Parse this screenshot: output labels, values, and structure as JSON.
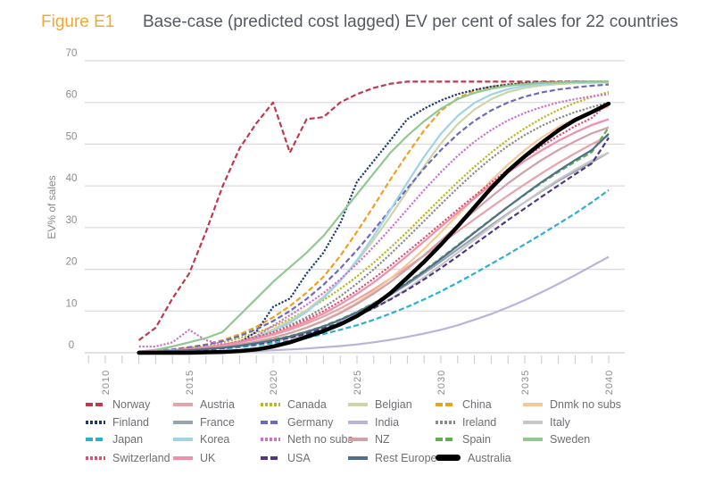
{
  "figure_label": "Figure E1",
  "chart_data": {
    "type": "line",
    "title": "Base-case (predicted cost lagged) EV per cent of sales for 22 countries",
    "xlabel": "",
    "ylabel": "EV% of sales",
    "xlim": [
      2008,
      2041
    ],
    "ylim": [
      0,
      70
    ],
    "x_ticks": [
      2010,
      2015,
      2020,
      2025,
      2030,
      2035,
      2040
    ],
    "y_ticks": [
      0,
      10,
      20,
      30,
      40,
      50,
      60,
      70
    ],
    "grid": "horizontal",
    "legend_position": "bottom",
    "x": [
      2012,
      2013,
      2014,
      2015,
      2016,
      2017,
      2018,
      2019,
      2020,
      2021,
      2022,
      2023,
      2024,
      2025,
      2026,
      2027,
      2028,
      2029,
      2030,
      2031,
      2032,
      2033,
      2034,
      2035,
      2036,
      2037,
      2038,
      2039,
      2040
    ],
    "series": [
      {
        "name": "Norway",
        "color": "#c0394b",
        "style": "dash",
        "values": [
          3,
          6,
          13,
          19,
          29,
          40,
          49,
          55,
          60,
          48,
          56,
          56.5,
          60,
          62,
          63.5,
          64.5,
          65,
          65,
          65,
          65,
          65,
          65,
          65,
          65,
          65,
          65,
          65,
          65,
          65
        ]
      },
      {
        "name": "Austria",
        "color": "#e8a3aa",
        "style": "solid",
        "values": [
          0.3,
          0.4,
          0.6,
          0.9,
          1.3,
          1.8,
          2.5,
          3.3,
          4.3,
          5.5,
          7,
          8.7,
          10.6,
          12.8,
          15.2,
          17.8,
          20.5,
          23.3,
          26.2,
          29.1,
          32,
          34.9,
          37.7,
          40.4,
          43,
          45.5,
          47.8,
          50,
          52
        ]
      },
      {
        "name": "Canada",
        "color": "#b8b820",
        "style": "dot",
        "values": [
          0.3,
          0.5,
          0.8,
          1.2,
          1.7,
          2.5,
          3.5,
          4.8,
          6.3,
          8.1,
          10.2,
          12.6,
          15.3,
          18.3,
          21.6,
          25.2,
          29,
          33,
          37,
          40.9,
          44.6,
          48,
          51.1,
          53.8,
          56.2,
          58.2,
          59.9,
          61.3,
          62.5
        ]
      },
      {
        "name": "Belgian",
        "color": "#cbd5a8",
        "style": "solid",
        "values": [
          0.2,
          0.4,
          0.6,
          0.9,
          1.3,
          1.9,
          2.8,
          4,
          5.6,
          7.6,
          10.2,
          13.4,
          17.3,
          21.9,
          27.1,
          32.8,
          38.8,
          44.7,
          50.2,
          54.8,
          58.3,
          60.8,
          62.5,
          63.5,
          64.1,
          64.4,
          64.6,
          64.7,
          64.8
        ]
      },
      {
        "name": "China",
        "color": "#f0a020",
        "style": "dash",
        "values": [
          0.3,
          0.5,
          0.8,
          1.3,
          2,
          3,
          4.4,
          6.2,
          8.5,
          11.2,
          14.4,
          18.2,
          23.2,
          29,
          35.2,
          41.6,
          47.6,
          53.3,
          58,
          61,
          62.9,
          63.8,
          64.3,
          64.6,
          64.8,
          64.9,
          64.9,
          65,
          65
        ]
      },
      {
        "name": "Dnmk no subs",
        "color": "#f5c89a",
        "style": "solid",
        "values": [
          0.2,
          0.3,
          0.5,
          0.7,
          1,
          1.4,
          2,
          2.7,
          3.6,
          4.7,
          6.1,
          7.7,
          9.7,
          12,
          14.7,
          17.8,
          21.2,
          24.9,
          28.9,
          33,
          37.2,
          41.3,
          45.1,
          48.6,
          51.6,
          54.1,
          56.1,
          57.7,
          59
        ]
      },
      {
        "name": "Finland",
        "color": "#1e3a6e",
        "style": "dot",
        "values": [
          0.2,
          0.3,
          0.5,
          0.8,
          1.2,
          1.8,
          2.5,
          5,
          11,
          13,
          19,
          24,
          31,
          41,
          46,
          51,
          56,
          58.5,
          60.5,
          62,
          63,
          63.8,
          64.3,
          64.6,
          64.8,
          64.9,
          65,
          65,
          65
        ]
      },
      {
        "name": "France",
        "color": "#98a2b3",
        "style": "solid",
        "values": [
          0.2,
          0.3,
          0.4,
          0.6,
          0.9,
          1.2,
          1.7,
          2.3,
          3,
          3.9,
          5,
          6.3,
          7.8,
          9.6,
          11.6,
          13.9,
          16.4,
          19.1,
          21.9,
          24.8,
          27.7,
          30.6,
          33.4,
          36.1,
          38.7,
          41.2,
          43.5,
          45.7,
          48
        ]
      },
      {
        "name": "Germany",
        "color": "#6a6ac0",
        "style": "dash",
        "values": [
          0.3,
          0.5,
          0.8,
          1.3,
          1.9,
          2.8,
          4,
          5.6,
          7.6,
          10,
          12.9,
          16.3,
          20.2,
          24.6,
          29.4,
          34.4,
          39.4,
          44.2,
          48.6,
          52.4,
          55.6,
          58.1,
          60,
          61.4,
          62.4,
          63.1,
          63.6,
          64,
          64.3
        ]
      },
      {
        "name": "India",
        "color": "#b8b4dc",
        "style": "solid",
        "values": [
          0,
          0,
          0,
          0.1,
          0.1,
          0.2,
          0.3,
          0.4,
          0.6,
          0.8,
          1,
          1.3,
          1.6,
          2,
          2.5,
          3.1,
          3.8,
          4.6,
          5.5,
          6.6,
          7.9,
          9.3,
          10.9,
          12.6,
          14.5,
          16.5,
          18.6,
          20.8,
          23
        ]
      },
      {
        "name": "Ireland",
        "color": "#8a8a8a",
        "style": "dot",
        "values": [
          0.2,
          0.4,
          0.6,
          0.9,
          1.3,
          1.9,
          2.7,
          3.7,
          5,
          6.6,
          8.5,
          10.8,
          13.5,
          16.6,
          20,
          23.7,
          27.6,
          31.6,
          35.6,
          39.5,
          43.2,
          46.6,
          49.6,
          52.2,
          54.4,
          56.2,
          57.7,
          58.9,
          60
        ]
      },
      {
        "name": "Italy",
        "color": "#c8c8cc",
        "style": "solid",
        "values": [
          0.2,
          0.3,
          0.4,
          0.6,
          0.8,
          1.1,
          1.5,
          2,
          2.7,
          3.5,
          4.5,
          5.7,
          7.1,
          8.8,
          10.7,
          12.9,
          15.4,
          18.1,
          21,
          24,
          27.1,
          30.2,
          33.2,
          36.1,
          38.9,
          41.5,
          43.9,
          46.1,
          48
        ]
      },
      {
        "name": "Japan",
        "color": "#2ab0d0",
        "style": "dash",
        "values": [
          0.1,
          0.2,
          0.3,
          0.5,
          0.7,
          1,
          1.3,
          1.8,
          2.3,
          2.9,
          3.6,
          4.5,
          5.5,
          6.6,
          7.9,
          9.4,
          11,
          12.8,
          14.7,
          16.8,
          19,
          21.3,
          23.6,
          26,
          28.4,
          30.9,
          33.4,
          36.1,
          39
        ]
      },
      {
        "name": "Korea",
        "color": "#9fd4e8",
        "style": "solid",
        "values": [
          0.2,
          0.3,
          0.5,
          0.8,
          1.2,
          1.8,
          2.6,
          3.7,
          5.2,
          7.2,
          9.8,
          13.1,
          17.2,
          22.2,
          28,
          34.3,
          40.8,
          47,
          52.5,
          56.8,
          59.9,
          61.9,
          63.2,
          64,
          64.4,
          64.7,
          64.8,
          64.9,
          65
        ]
      },
      {
        "name": "Neth no subs",
        "color": "#d070d0",
        "style": "dot",
        "values": [
          1.5,
          1.5,
          2.5,
          5.5,
          3,
          2,
          2.5,
          4,
          6.5,
          9,
          11.5,
          14.3,
          17.6,
          21.3,
          25.4,
          29.8,
          34.4,
          39,
          43.3,
          47.2,
          50.6,
          53.4,
          55.7,
          57.5,
          58.9,
          60,
          60.8,
          61.5,
          62
        ]
      },
      {
        "name": "NZ",
        "color": "#d4a0a8",
        "style": "solid",
        "values": [
          0.2,
          0.3,
          0.5,
          0.7,
          1,
          1.4,
          2,
          2.7,
          3.6,
          4.7,
          6,
          7.6,
          9.5,
          11.7,
          14.2,
          17,
          20.1,
          23.4,
          26.9,
          30.5,
          34,
          37.4,
          40.6,
          43.5,
          46.2,
          48.6,
          50.7,
          52.6,
          54
        ]
      },
      {
        "name": "Spain",
        "color": "#60b050",
        "style": "dash",
        "values": [
          0.2,
          0.3,
          0.4,
          0.6,
          0.9,
          1.2,
          1.7,
          2.3,
          3.1,
          4,
          5.1,
          6.4,
          8,
          9.8,
          11.9,
          14.3,
          16.9,
          19.7,
          22.7,
          25.8,
          28.9,
          32,
          35,
          37.9,
          40.7,
          43.3,
          45.8,
          48.1,
          54
        ]
      },
      {
        "name": "Sweden",
        "color": "#90c890",
        "style": "solid",
        "values": [
          0.3,
          0.7,
          1.5,
          2.5,
          3.5,
          5,
          9,
          13,
          17,
          20.5,
          24,
          28,
          33,
          38,
          43,
          48,
          52,
          55.5,
          58.5,
          60.8,
          62.3,
          63.3,
          64,
          64.4,
          64.7,
          64.8,
          64.9,
          65,
          65
        ]
      },
      {
        "name": "Switzerland",
        "color": "#e05070",
        "style": "dot",
        "values": [
          0.3,
          0.4,
          0.6,
          0.9,
          1.3,
          1.9,
          2.7,
          3.7,
          4.9,
          6.3,
          8,
          10,
          12.3,
          14.9,
          17.8,
          20.9,
          24.2,
          27.5,
          30.9,
          34.3,
          37.6,
          40.8,
          43.9,
          46.8,
          49.5,
          52,
          54.3,
          56.3,
          60
        ]
      },
      {
        "name": "UK",
        "color": "#f090a8",
        "style": "solid",
        "values": [
          0.2,
          0.4,
          0.6,
          0.9,
          1.3,
          1.8,
          2.5,
          3.4,
          4.5,
          5.9,
          7.5,
          9.4,
          11.6,
          14.1,
          16.9,
          20,
          23.3,
          26.7,
          30.2,
          33.6,
          37,
          40.2,
          43.2,
          46,
          48.5,
          50.8,
          52.8,
          54.6,
          56
        ]
      },
      {
        "name": "USA",
        "color": "#503880",
        "style": "dash",
        "values": [
          0.2,
          0.3,
          0.4,
          0.6,
          0.8,
          1.1,
          1.6,
          2.1,
          2.8,
          3.6,
          4.6,
          5.8,
          7.2,
          8.8,
          10.7,
          12.8,
          15.1,
          17.6,
          20.3,
          23.1,
          26,
          28.9,
          31.8,
          34.6,
          37.4,
          40.1,
          42.8,
          45.4,
          51.5
        ]
      },
      {
        "name": "Rest Europe",
        "color": "#507088",
        "style": "solid",
        "values": [
          0.2,
          0.3,
          0.4,
          0.6,
          0.9,
          1.2,
          1.7,
          2.3,
          3,
          3.9,
          5,
          6.3,
          7.9,
          9.7,
          11.8,
          14.1,
          16.7,
          19.5,
          22.5,
          25.6,
          28.8,
          31.9,
          35,
          38,
          40.9,
          43.6,
          46.2,
          48.6,
          52.5
        ]
      },
      {
        "name": "Australia",
        "color": "#000000",
        "style": "bold",
        "values": [
          0,
          0,
          0,
          0,
          0.1,
          0.2,
          0.4,
          0.8,
          1.5,
          2.5,
          3.8,
          5.2,
          6.8,
          8.8,
          11.3,
          14.3,
          18,
          21.8,
          25.9,
          30.3,
          34.9,
          39.5,
          43.6,
          47.1,
          50.3,
          53.3,
          55.8,
          57.7,
          59.7
        ]
      }
    ]
  }
}
